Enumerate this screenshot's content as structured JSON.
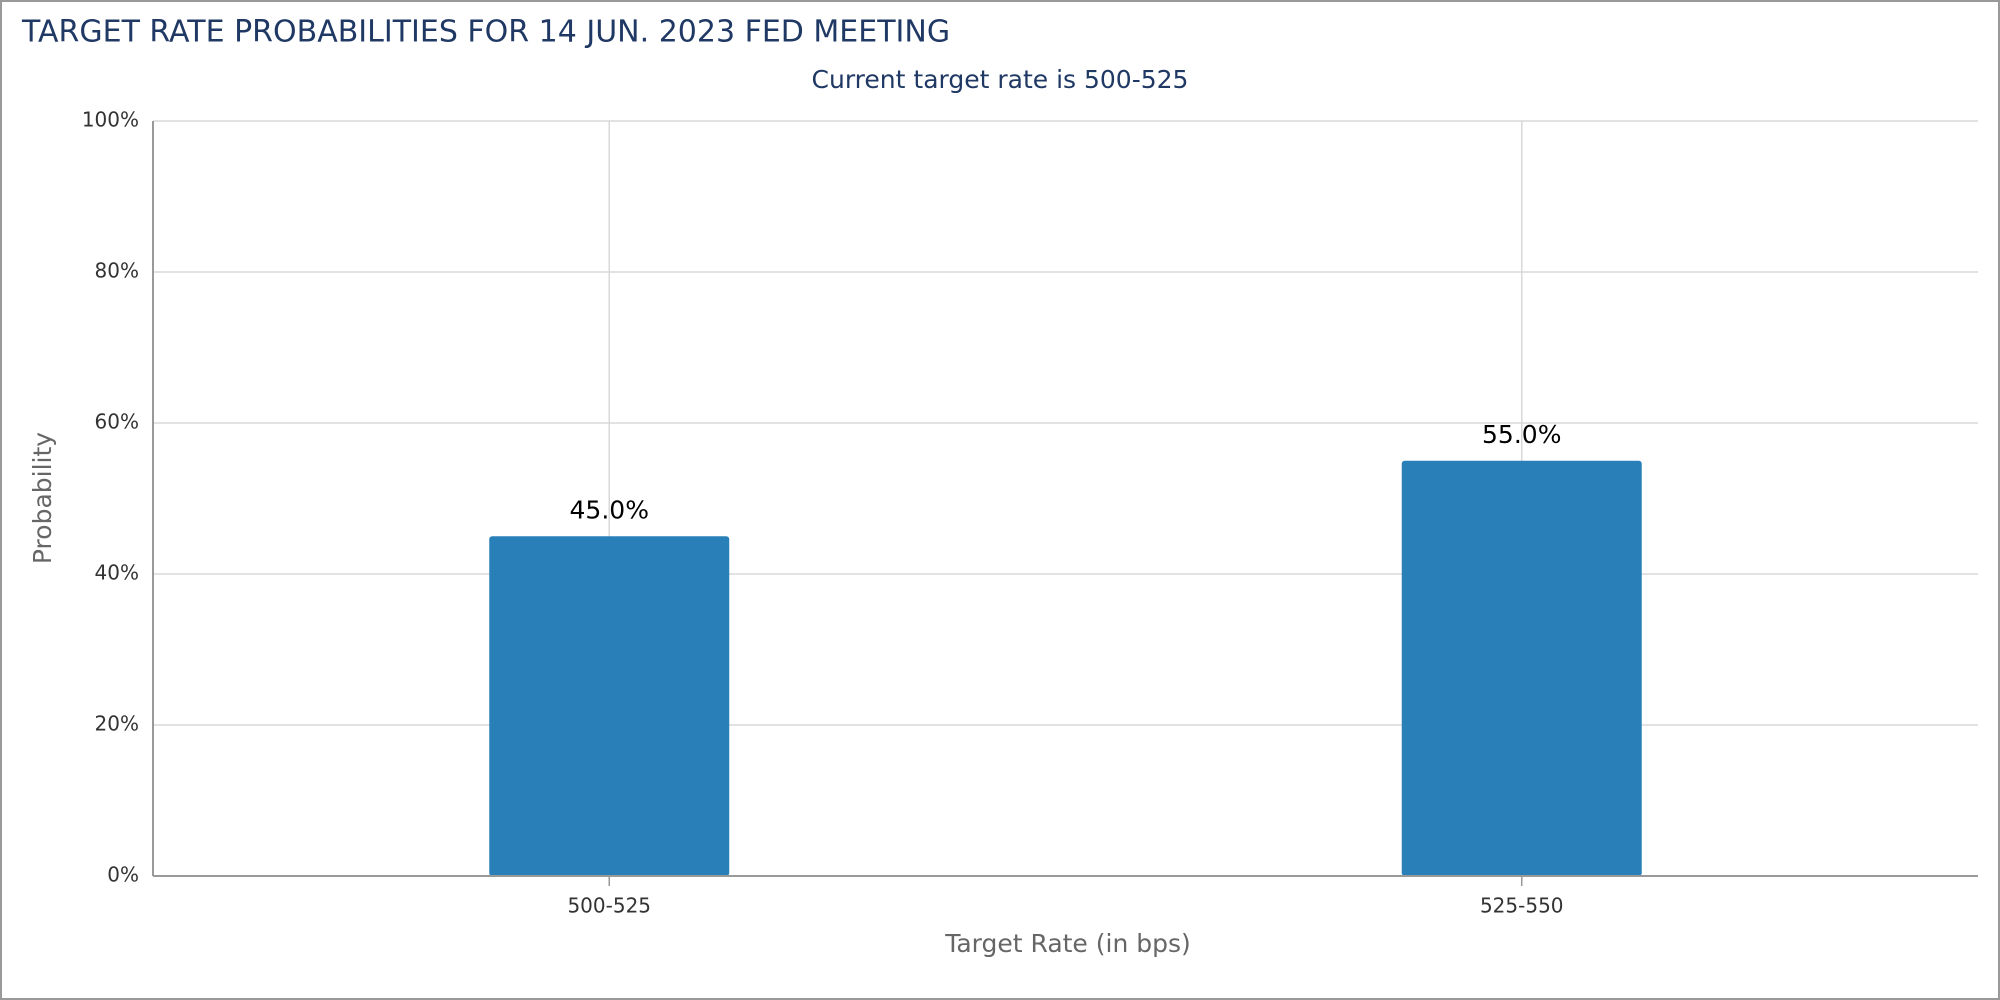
{
  "chart_data": {
    "type": "bar",
    "title": "TARGET RATE PROBABILITIES FOR 14 JUN. 2023 FED MEETING",
    "subtitle": "Current target rate is 500-525",
    "x_label": "Target Rate (in bps)",
    "y_label": "Probability",
    "categories": [
      "500-525",
      "525-550"
    ],
    "values": [
      45,
      55
    ],
    "value_labels": [
      "45.0%",
      "55.0%"
    ],
    "color": "#2980b9",
    "ylim": [
      0,
      100
    ],
    "yticks": [
      {
        "value": 0,
        "label": "0%"
      },
      {
        "value": 20,
        "label": "20%"
      },
      {
        "value": 40,
        "label": "40%"
      },
      {
        "value": 60,
        "label": "60%"
      },
      {
        "value": 80,
        "label": "80%"
      },
      {
        "value": 100,
        "label": "100%"
      }
    ],
    "grid": true
  }
}
